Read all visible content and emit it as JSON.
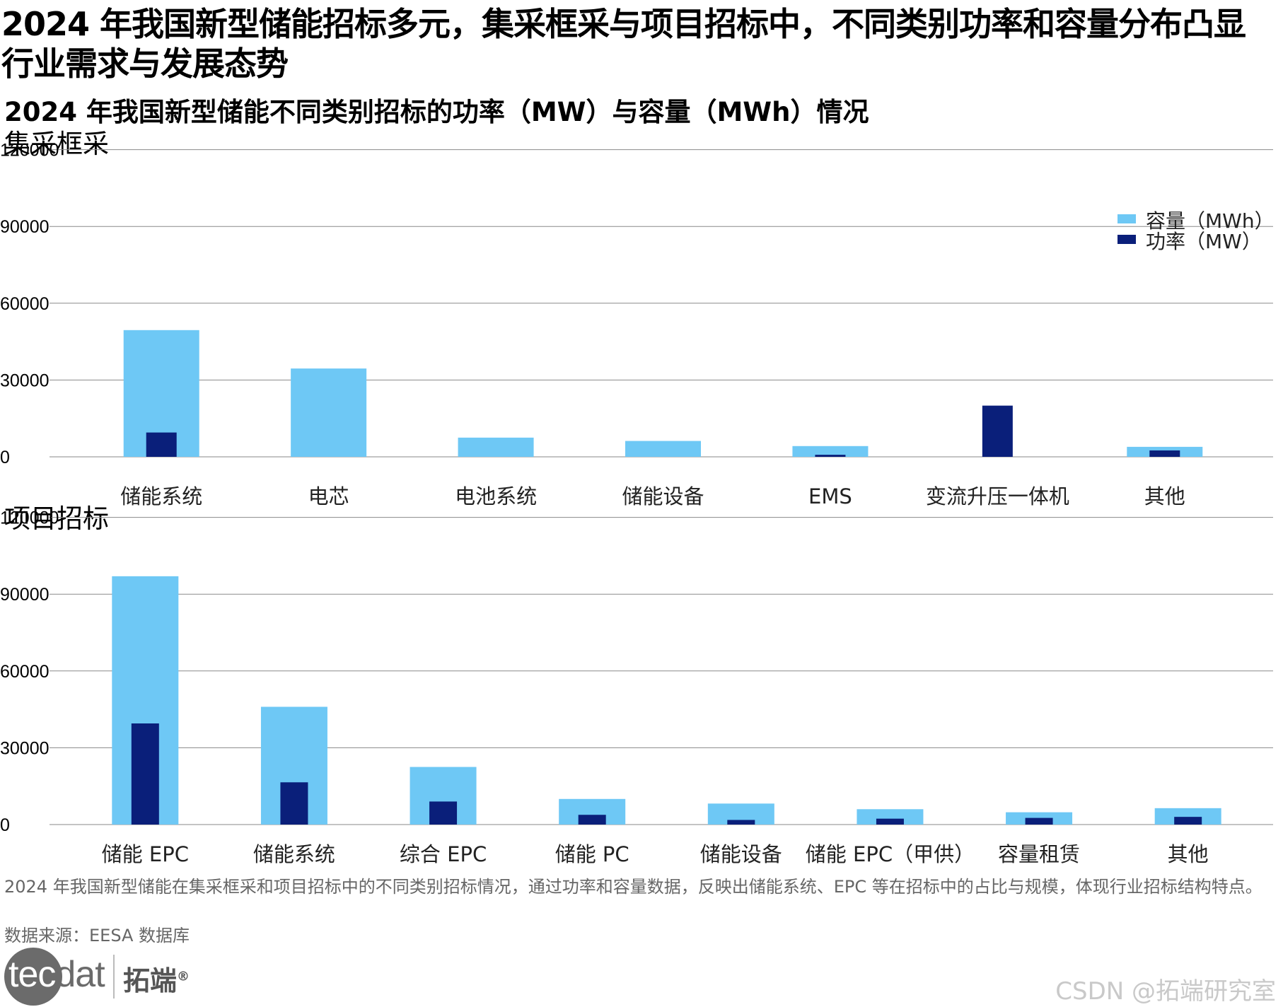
{
  "page": {
    "main_title": "2024 年我国新型储能招标多元，集采框采与项目招标中，不同类别功率和容量分布凸显行业需求与发展态势",
    "chart_title": "2024 年我国新型储能不同类别招标的功率（MW）与容量（MWh）情况",
    "footnote": "2024 年我国新型储能在集采框采和项目招标中的不同类别招标情况，通过功率和容量数据，反映出储能系统、EPC 等在招标中的占比与规模，体现行业招标结构特点。",
    "source": "数据来源：EESA 数据库",
    "logo_word_main": "tec",
    "logo_word_end": "dat",
    "logo_cn": "拓端",
    "logo_reg": "®",
    "watermark": "CSDN @拓端研究室"
  },
  "legend": [
    {
      "label": "功率（MW）",
      "color": "#0a1f7a"
    },
    {
      "label": "容量（MWh）",
      "color": "#6ec8f5"
    }
  ],
  "colors": {
    "power": "#0a1f7a",
    "capacity": "#6ec8f5",
    "grid": "#8a8a8a"
  },
  "chart_data": [
    {
      "type": "bar",
      "title": "集采框采",
      "categories": [
        "储能系统",
        "电芯",
        "电池系统",
        "储能设备",
        "EMS",
        "变流升压一体机",
        "其他"
      ],
      "series": [
        {
          "name": "功率（MW）",
          "values": [
            9500,
            0,
            0,
            0,
            800,
            20000,
            2500
          ]
        },
        {
          "name": "容量（MWh）",
          "values": [
            49500,
            34500,
            7500,
            6200,
            4200,
            0,
            3900
          ]
        }
      ],
      "ylim": [
        0,
        100000
      ],
      "yticks": [
        0,
        30000,
        60000,
        90000,
        120000
      ],
      "grid": true,
      "legend_position": "top-right"
    },
    {
      "type": "bar",
      "title": "项目招标",
      "categories": [
        "储能 EPC",
        "储能系统",
        "综合 EPC",
        "储能 PC",
        "储能设备",
        "储能 EPC（甲供）",
        "容量租赁",
        "其他"
      ],
      "series": [
        {
          "name": "功率（MW）",
          "values": [
            39500,
            16500,
            9000,
            3800,
            1800,
            2300,
            2600,
            3000
          ]
        },
        {
          "name": "容量（MWh）",
          "values": [
            97000,
            46000,
            22500,
            10000,
            8200,
            6000,
            4800,
            6400
          ]
        }
      ],
      "ylim": [
        0,
        100000
      ],
      "yticks": [
        0,
        30000,
        60000,
        90000,
        120000
      ],
      "grid": true,
      "legend_position": "none"
    }
  ]
}
